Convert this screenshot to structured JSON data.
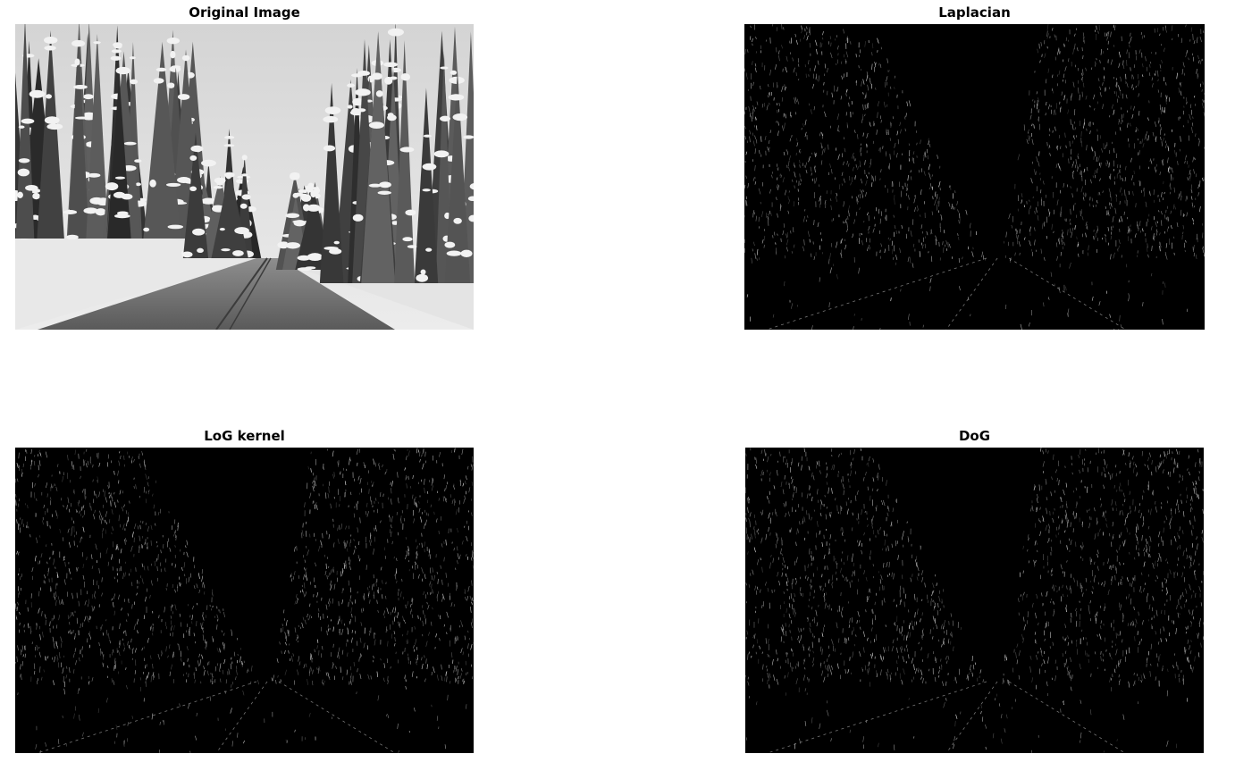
{
  "figure": {
    "panels": [
      {
        "title": "Original Image",
        "kind": "grayscale-photo"
      },
      {
        "title": "Laplacian",
        "kind": "edge-map"
      },
      {
        "title": "LoG kernel",
        "kind": "edge-map"
      },
      {
        "title": "DoG",
        "kind": "edge-map"
      }
    ]
  }
}
